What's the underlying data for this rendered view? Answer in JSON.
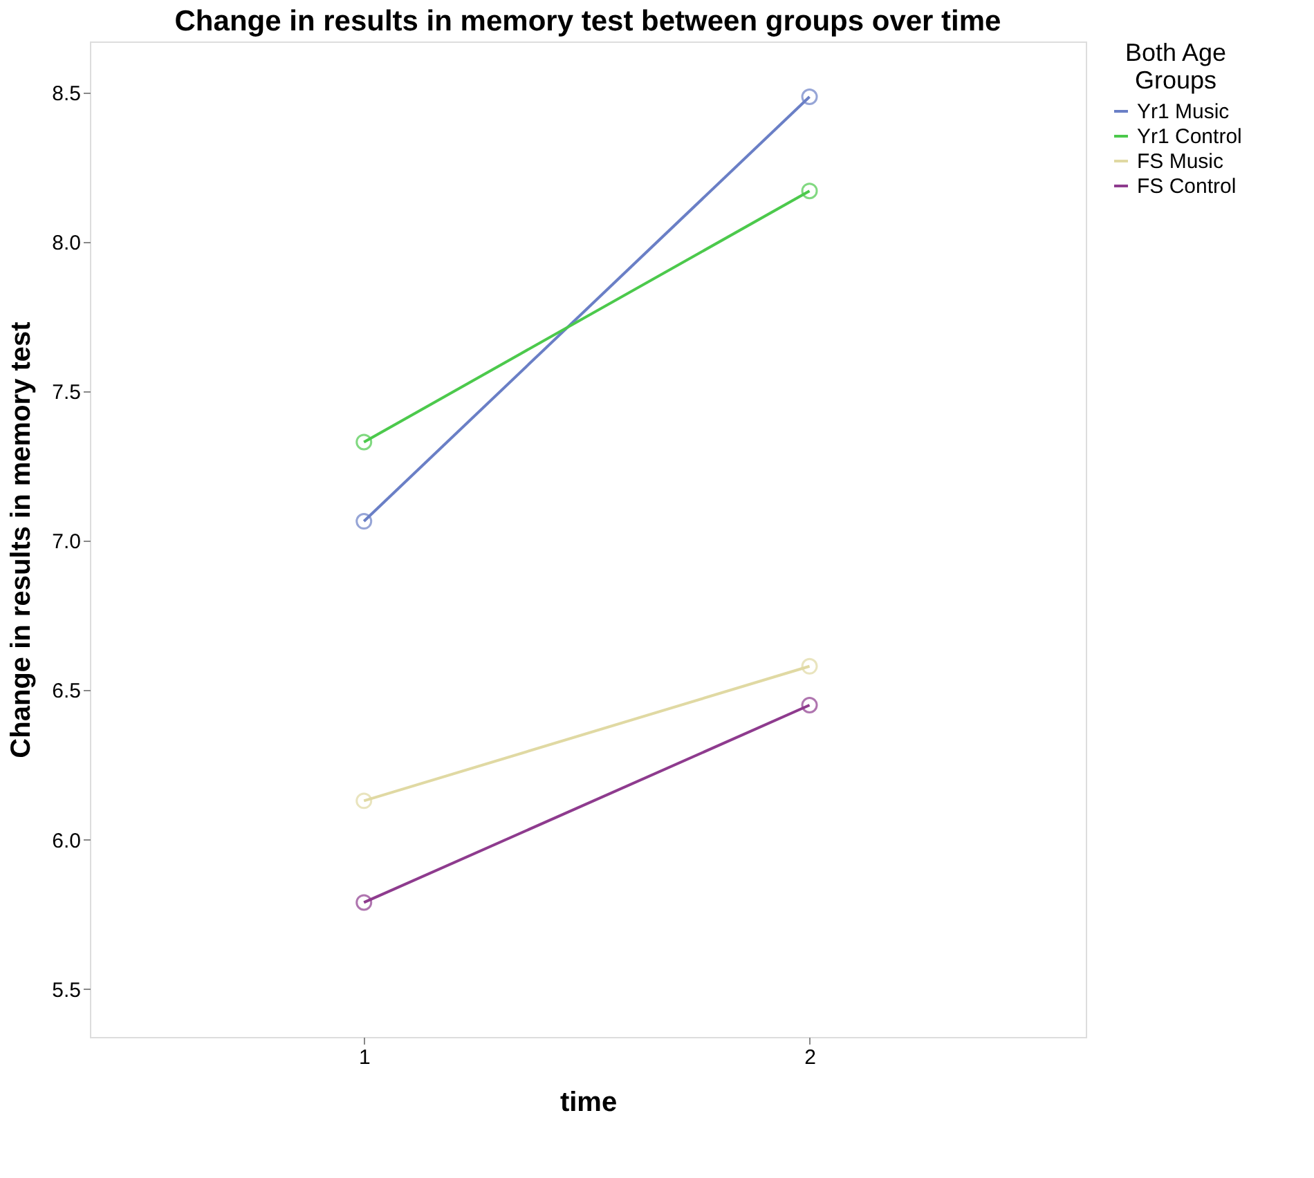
{
  "chart_data": {
    "type": "line",
    "title": "Change in results in memory test between groups over time",
    "xlabel": "time",
    "ylabel": "Change in results in memory test",
    "legend_title": "Both Age Groups",
    "x": [
      1,
      2
    ],
    "xlim": [
      0.385,
      2.62
    ],
    "xticks": [
      1,
      2
    ],
    "ylim": [
      5.34,
      8.67
    ],
    "yticks": [
      5.5,
      {
        "value": 6,
        "label": "6.0"
      },
      6.5,
      {
        "value": 7,
        "label": "7.0"
      },
      7.5,
      {
        "value": 8,
        "label": "8.0"
      },
      8.5
    ],
    "grid": false,
    "legend": "top right",
    "marker": "circle",
    "line_style": "solid",
    "series": [
      {
        "name": "Yr1 Music",
        "color": "#6a7fc6",
        "values": [
          7.065,
          8.485
        ]
      },
      {
        "name": "Yr1 Control",
        "color": "#4cc94c",
        "values": [
          7.33,
          8.17
        ]
      },
      {
        "name": "FS Music",
        "color": "#e0d9a3",
        "values": [
          6.13,
          6.58
        ]
      },
      {
        "name": "FS Control",
        "color": "#8e3b8e",
        "values": [
          5.79,
          6.45
        ]
      }
    ]
  }
}
